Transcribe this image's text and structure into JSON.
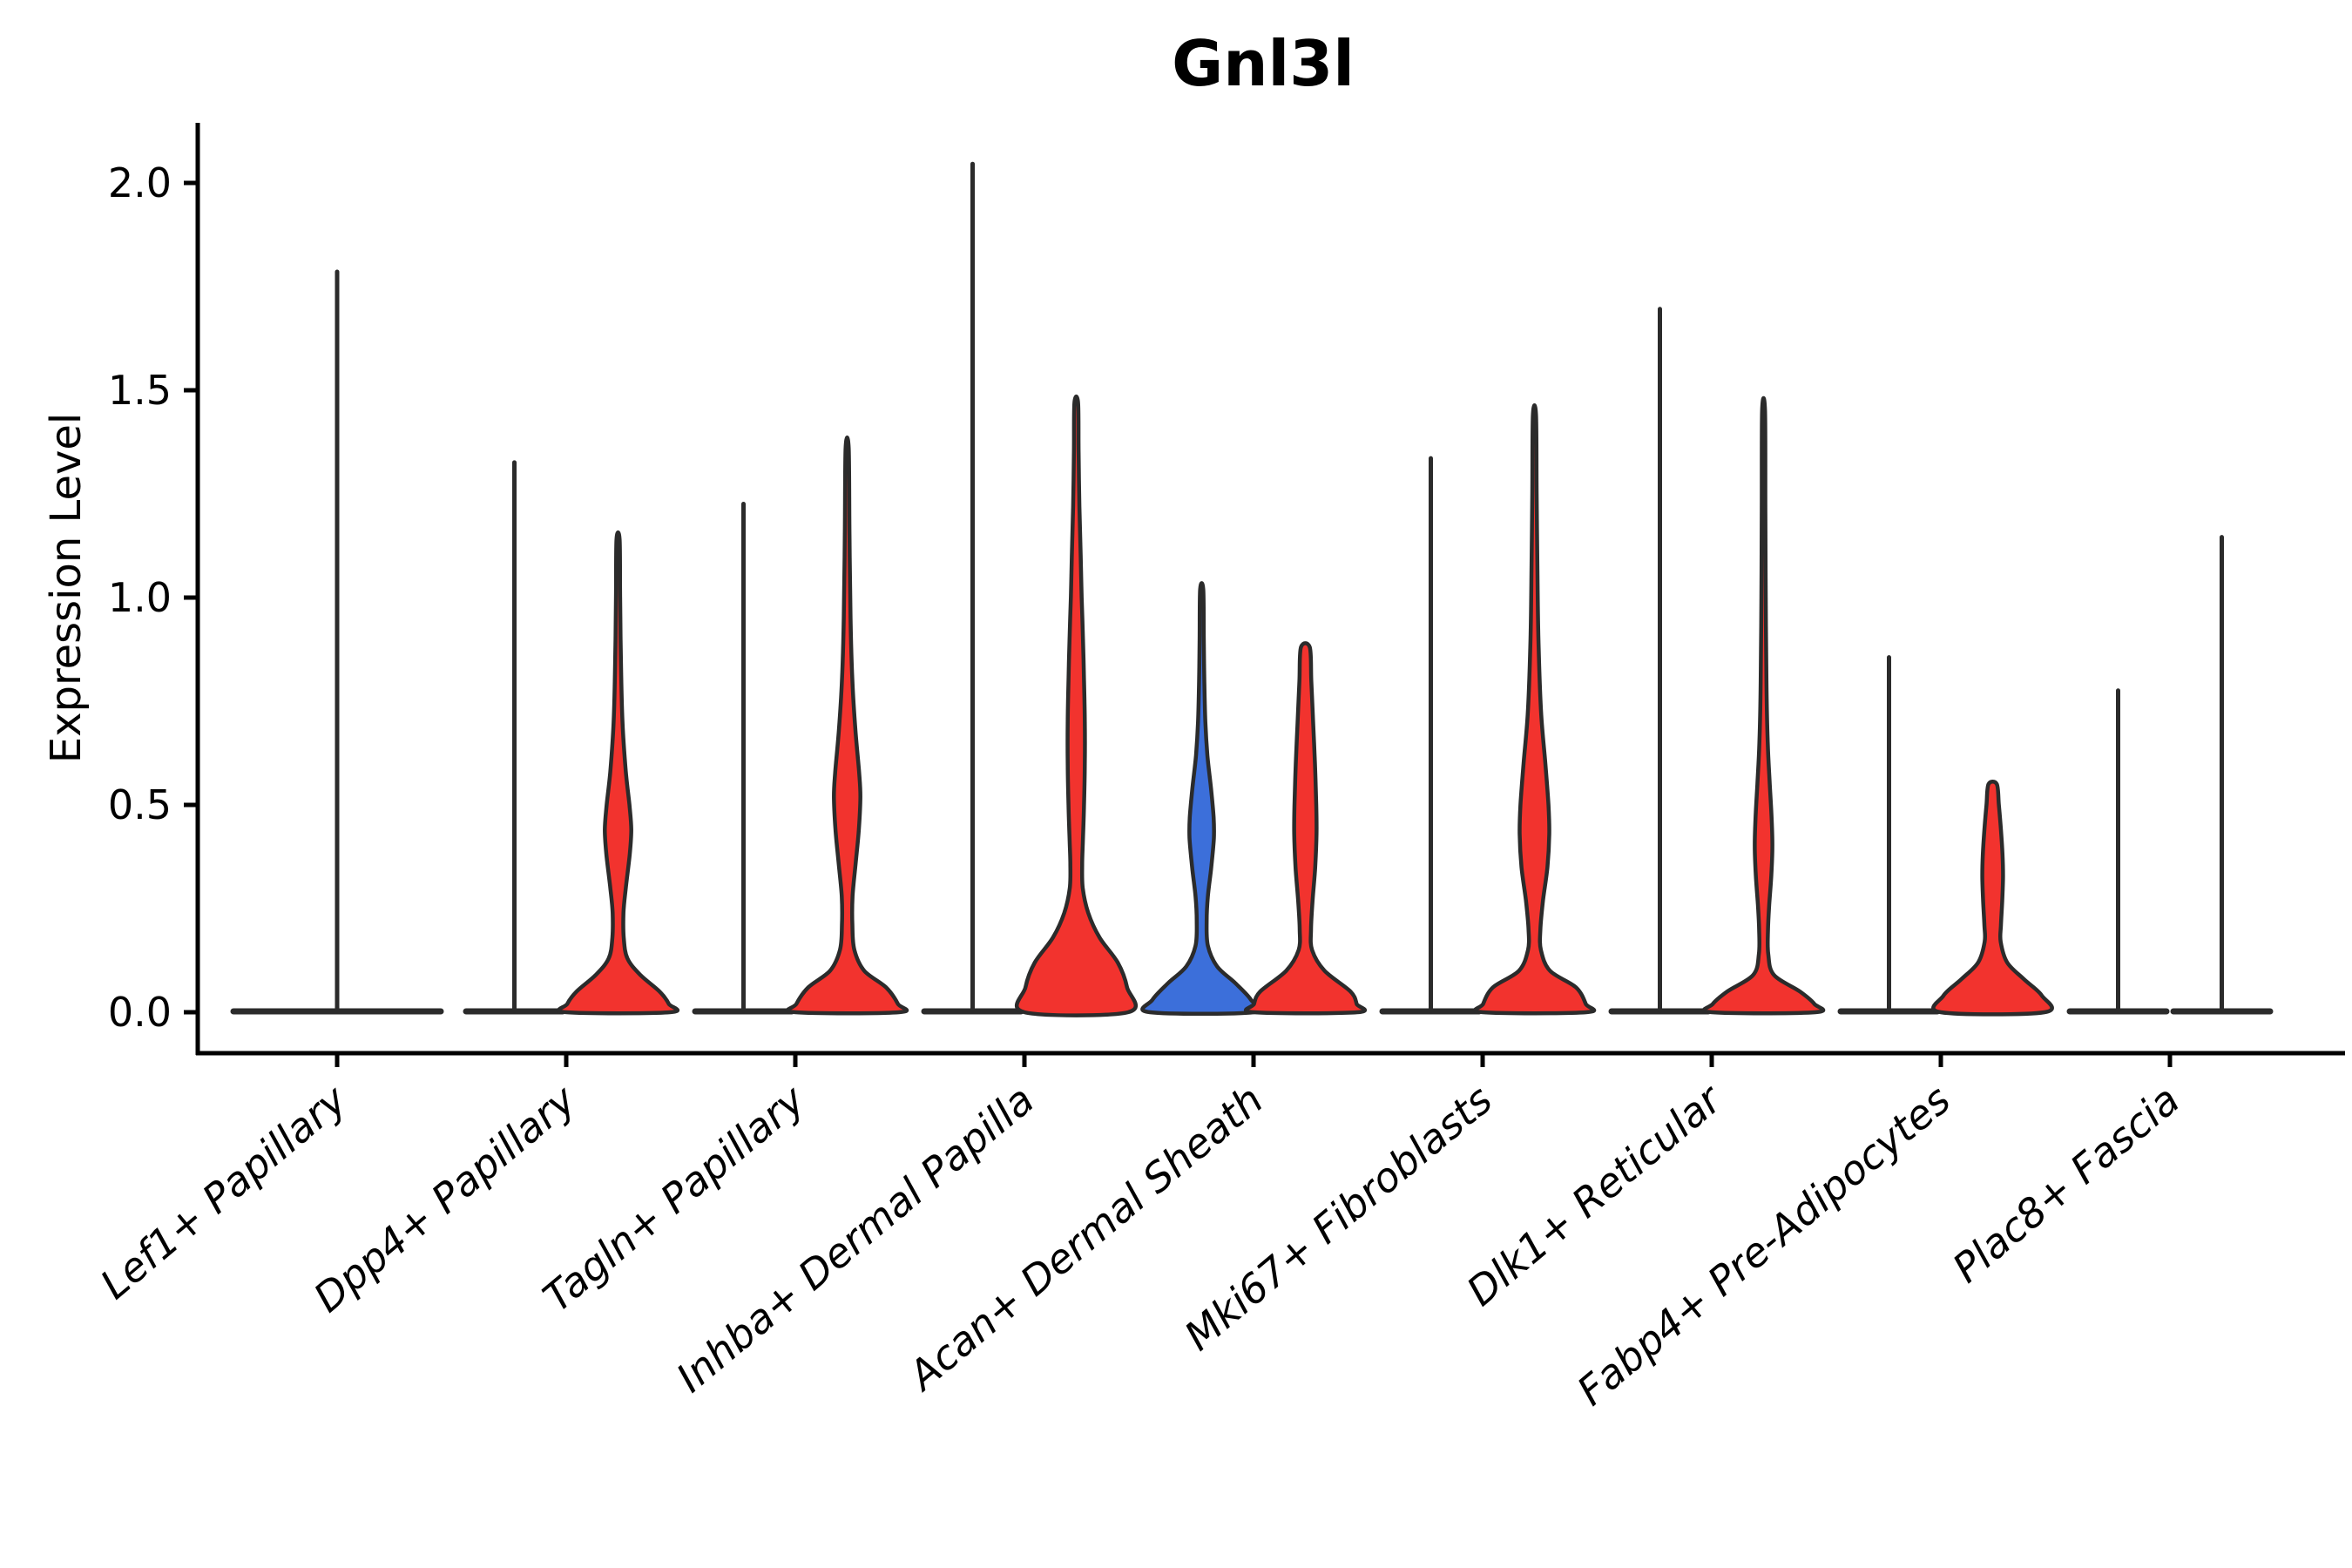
{
  "title": "Gnl3l",
  "ylabel": "Expression Level",
  "yticks": [
    "0.0",
    "0.5",
    "1.0",
    "1.5",
    "2.0"
  ],
  "ytick_values": [
    0.0,
    0.5,
    1.0,
    1.5,
    2.0
  ],
  "colors": {
    "red": "#f2332e",
    "blue": "#3c6fda",
    "edge": "#2b2b2b",
    "axis": "#000000"
  },
  "chart_data": {
    "type": "violin",
    "title": "Gnl3l",
    "ylabel": "Expression Level",
    "ylim": [
      -0.1,
      2.15
    ],
    "grid": false,
    "legend": "none",
    "categories": [
      "Lef1+ Papillary",
      "Dpp4+ Papillary",
      "Tagln+ Papillary",
      "Inhba+ Dermal Papilla",
      "Acan+ Dermal Sheath",
      "Mki67+ Fibroblasts",
      "Dlk1+ Reticular",
      "Fabp4+ Pre-Adipocytes",
      "Plac8+ Fascia"
    ],
    "groups": [
      {
        "label": "Lef1+ Papillary",
        "violins": [
          {
            "side": "full",
            "style": "flat",
            "max": 1.79,
            "fill": "none"
          }
        ]
      },
      {
        "label": "Dpp4+ Papillary",
        "violins": [
          {
            "side": "left",
            "style": "flat",
            "max": 1.33,
            "fill": "none"
          },
          {
            "side": "right",
            "style": "shape",
            "max": 1.14,
            "fill": "red",
            "profile": [
              [
                1.14,
                0.03
              ],
              [
                1.0,
                0.04
              ],
              [
                0.85,
                0.055
              ],
              [
                0.7,
                0.085
              ],
              [
                0.58,
                0.15
              ],
              [
                0.5,
                0.22
              ],
              [
                0.44,
                0.255
              ],
              [
                0.38,
                0.225
              ],
              [
                0.3,
                0.15
              ],
              [
                0.24,
                0.105
              ],
              [
                0.18,
                0.11
              ],
              [
                0.13,
                0.18
              ],
              [
                0.09,
                0.43
              ],
              [
                0.05,
                0.8
              ],
              [
                0.02,
                0.98
              ],
              [
                0.0,
                1.0
              ]
            ]
          }
        ]
      },
      {
        "label": "Tagln+ Papillary",
        "violins": [
          {
            "side": "left",
            "style": "flat",
            "max": 1.23,
            "fill": "none"
          },
          {
            "side": "right",
            "style": "shape",
            "max": 1.36,
            "fill": "red",
            "profile": [
              [
                1.36,
                0.03
              ],
              [
                1.15,
                0.045
              ],
              [
                0.95,
                0.065
              ],
              [
                0.8,
                0.1
              ],
              [
                0.68,
                0.16
              ],
              [
                0.58,
                0.23
              ],
              [
                0.52,
                0.255
              ],
              [
                0.44,
                0.225
              ],
              [
                0.36,
                0.165
              ],
              [
                0.28,
                0.105
              ],
              [
                0.21,
                0.1
              ],
              [
                0.15,
                0.14
              ],
              [
                0.1,
                0.33
              ],
              [
                0.06,
                0.75
              ],
              [
                0.02,
                0.98
              ],
              [
                0.0,
                1.0
              ]
            ]
          }
        ]
      },
      {
        "label": "Inhba+ Dermal Papilla",
        "violins": [
          {
            "side": "left",
            "style": "flat",
            "max": 2.05,
            "fill": "none"
          },
          {
            "side": "right",
            "style": "shape",
            "max": 1.47,
            "fill": "red",
            "profile": [
              [
                1.47,
                0.035
              ],
              [
                1.35,
                0.045
              ],
              [
                1.22,
                0.06
              ],
              [
                1.1,
                0.085
              ],
              [
                1.0,
                0.105
              ],
              [
                0.9,
                0.13
              ],
              [
                0.8,
                0.15
              ],
              [
                0.7,
                0.165
              ],
              [
                0.6,
                0.165
              ],
              [
                0.5,
                0.15
              ],
              [
                0.42,
                0.13
              ],
              [
                0.36,
                0.115
              ],
              [
                0.3,
                0.125
              ],
              [
                0.24,
                0.23
              ],
              [
                0.18,
                0.45
              ],
              [
                0.12,
                0.8
              ],
              [
                0.06,
                0.98
              ],
              [
                0.0,
                1.0
              ]
            ]
          }
        ]
      },
      {
        "label": "Acan+ Dermal Sheath",
        "violins": [
          {
            "side": "left",
            "style": "shape",
            "max": 1.02,
            "fill": "blue",
            "profile": [
              [
                1.02,
                0.03
              ],
              [
                0.9,
                0.04
              ],
              [
                0.8,
                0.05
              ],
              [
                0.7,
                0.07
              ],
              [
                0.62,
                0.11
              ],
              [
                0.54,
                0.18
              ],
              [
                0.47,
                0.23
              ],
              [
                0.42,
                0.235
              ],
              [
                0.35,
                0.185
              ],
              [
                0.28,
                0.12
              ],
              [
                0.22,
                0.095
              ],
              [
                0.16,
                0.12
              ],
              [
                0.11,
                0.3
              ],
              [
                0.07,
                0.65
              ],
              [
                0.03,
                0.95
              ],
              [
                0.0,
                1.0
              ]
            ]
          },
          {
            "side": "right",
            "style": "shape",
            "max": 0.88,
            "fill": "red",
            "profile": [
              [
                0.88,
                0.085
              ],
              [
                0.8,
                0.115
              ],
              [
                0.7,
                0.15
              ],
              [
                0.6,
                0.185
              ],
              [
                0.5,
                0.21
              ],
              [
                0.43,
                0.215
              ],
              [
                0.35,
                0.19
              ],
              [
                0.27,
                0.14
              ],
              [
                0.2,
                0.11
              ],
              [
                0.15,
                0.13
              ],
              [
                0.1,
                0.37
              ],
              [
                0.05,
                0.87
              ],
              [
                0.02,
                0.99
              ],
              [
                0.0,
                1.0
              ]
            ]
          }
        ]
      },
      {
        "label": "Mki67+ Fibroblasts",
        "violins": [
          {
            "side": "left",
            "style": "flat",
            "max": 1.34,
            "fill": "none"
          },
          {
            "side": "right",
            "style": "shape",
            "max": 1.44,
            "fill": "red",
            "profile": [
              [
                1.44,
                0.03
              ],
              [
                1.25,
                0.042
              ],
              [
                1.05,
                0.058
              ],
              [
                0.88,
                0.08
              ],
              [
                0.72,
                0.13
              ],
              [
                0.6,
                0.21
              ],
              [
                0.5,
                0.27
              ],
              [
                0.43,
                0.285
              ],
              [
                0.35,
                0.25
              ],
              [
                0.27,
                0.165
              ],
              [
                0.2,
                0.115
              ],
              [
                0.15,
                0.125
              ],
              [
                0.1,
                0.3
              ],
              [
                0.06,
                0.8
              ],
              [
                0.02,
                0.99
              ],
              [
                0.0,
                1.0
              ]
            ]
          }
        ]
      },
      {
        "label": "Dlk1+ Reticular",
        "violins": [
          {
            "side": "left",
            "style": "flat",
            "max": 1.7,
            "fill": "none"
          },
          {
            "side": "right",
            "style": "shape",
            "max": 1.45,
            "fill": "red",
            "profile": [
              [
                1.45,
                0.028
              ],
              [
                1.2,
                0.035
              ],
              [
                1.0,
                0.042
              ],
              [
                0.8,
                0.055
              ],
              [
                0.65,
                0.08
              ],
              [
                0.55,
                0.12
              ],
              [
                0.47,
                0.155
              ],
              [
                0.4,
                0.17
              ],
              [
                0.33,
                0.15
              ],
              [
                0.26,
                0.11
              ],
              [
                0.2,
                0.085
              ],
              [
                0.14,
                0.09
              ],
              [
                0.09,
                0.2
              ],
              [
                0.05,
                0.7
              ],
              [
                0.02,
                0.98
              ],
              [
                0.0,
                1.0
              ]
            ]
          }
        ]
      },
      {
        "label": "Fabp4+ Pre-Adipocytes",
        "violins": [
          {
            "side": "left",
            "style": "flat",
            "max": 0.86,
            "fill": "none"
          },
          {
            "side": "right",
            "style": "shape",
            "max": 0.55,
            "fill": "red",
            "profile": [
              [
                0.55,
                0.08
              ],
              [
                0.5,
                0.12
              ],
              [
                0.44,
                0.16
              ],
              [
                0.38,
                0.19
              ],
              [
                0.33,
                0.2
              ],
              [
                0.27,
                0.185
              ],
              [
                0.21,
                0.16
              ],
              [
                0.17,
                0.155
              ],
              [
                0.12,
                0.28
              ],
              [
                0.08,
                0.6
              ],
              [
                0.04,
                0.95
              ],
              [
                0.0,
                1.0
              ]
            ]
          }
        ]
      },
      {
        "label": "Plac8+ Fascia",
        "violins": [
          {
            "side": "left",
            "style": "flat",
            "max": 0.78,
            "fill": "none"
          },
          {
            "side": "right",
            "style": "flat",
            "max": 1.15,
            "fill": "none"
          }
        ]
      }
    ]
  }
}
